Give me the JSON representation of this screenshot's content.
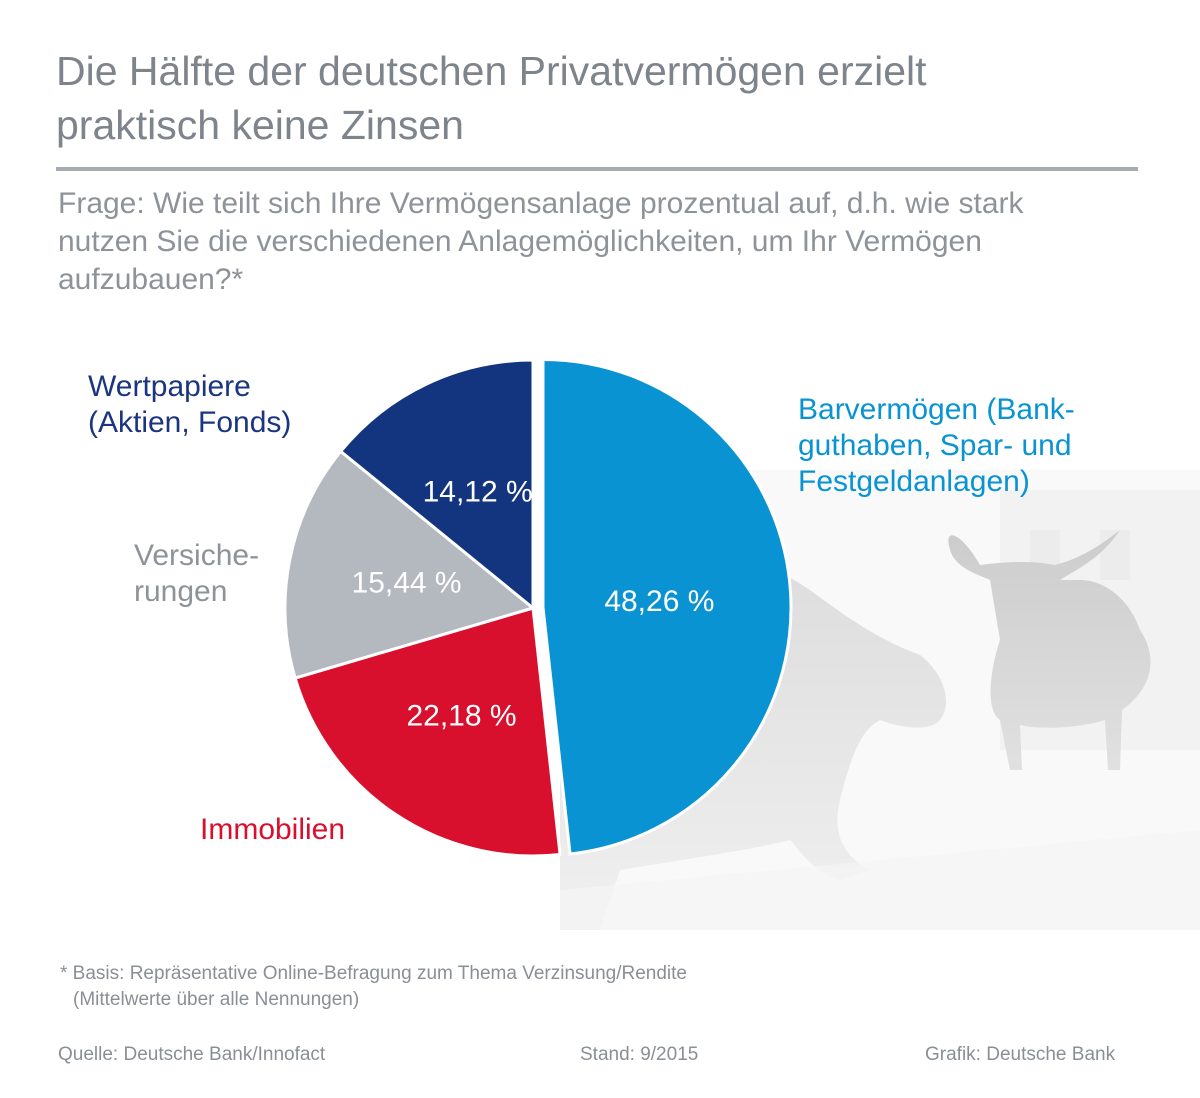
{
  "title_line1": "Die Hälfte der deutschen Privatvermögen erzielt",
  "title_line2": "praktisch keine Zinsen",
  "question_line1": "Frage: Wie teilt sich Ihre Vermögensanlage prozentual auf, d.h. wie stark",
  "question_line2": "nutzen Sie die verschiedenen Anlagemöglichkeiten, um Ihr Vermögen",
  "question_line3": "aufzubauen?*",
  "chart_data": {
    "type": "pie",
    "slices": [
      {
        "name_lines": [
          "Barvermögen (Bank-",
          "guthaben, Spar- und",
          "Festgeldanlagen)"
        ],
        "value": 48.26,
        "label": "48,26 %",
        "color": "#0a93d3"
      },
      {
        "name_lines": [
          "Immobilien"
        ],
        "value": 22.18,
        "label": "22,18 %",
        "color": "#d8102e"
      },
      {
        "name_lines": [
          "Versiche-",
          "rungen"
        ],
        "value": 15.44,
        "label": "15,44 %",
        "color": "#b4b8bf"
      },
      {
        "name_lines": [
          "Wertpapiere",
          "(Aktien, Fonds)"
        ],
        "value": 14.12,
        "label": "14,12 %",
        "color": "#13357f"
      }
    ]
  },
  "footnote_line1": "* Basis: Repräsentative Online-Befragung zum Thema Verzinsung/Rendite",
  "footnote_line2": "(Mittelwerte über alle Nennungen)",
  "source": "Quelle: Deutsche Bank/Innofact",
  "stand": "Stand: 9/2015",
  "grafik": "Grafik: Deutsche Bank"
}
